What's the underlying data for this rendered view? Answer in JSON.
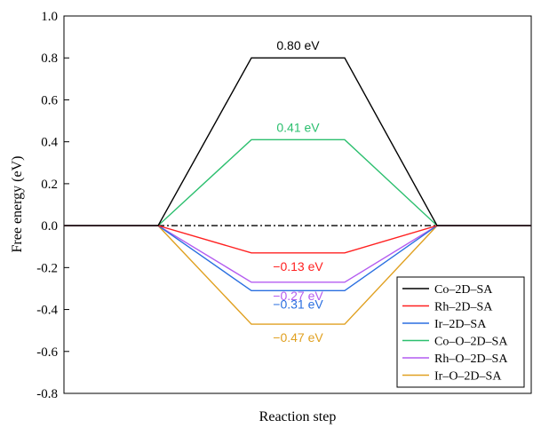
{
  "chart_data": {
    "type": "line",
    "title": "",
    "xlabel": "Reaction step",
    "ylabel": "Free energy (eV)",
    "ylim": [
      -0.8,
      1.0
    ],
    "yticks": [
      -0.8,
      -0.6,
      -0.4,
      -0.2,
      0.0,
      0.2,
      0.4,
      0.6,
      0.8,
      1.0
    ],
    "ytick_labels": [
      "-0.8",
      "-0.6",
      "-0.4",
      "-0.2",
      "0.0",
      "0.2",
      "0.4",
      "0.6",
      "0.8",
      "1.0"
    ],
    "grid": false,
    "legend_position": "bottom-right",
    "series": [
      {
        "name": "Co–2D–SA",
        "color": "#000000",
        "values": [
          0,
          0,
          0.8,
          0.8,
          0,
          0
        ],
        "annotation": "0.80 eV"
      },
      {
        "name": "Rh–2D–SA",
        "color": "#ff2020",
        "values": [
          0,
          0,
          -0.13,
          -0.13,
          0,
          0
        ],
        "annotation": "−0.13 eV"
      },
      {
        "name": "Ir–2D–SA",
        "color": "#2a6fe0",
        "values": [
          0,
          0,
          -0.31,
          -0.31,
          0,
          0
        ],
        "annotation": "−0.31 eV"
      },
      {
        "name": "Co–O–2D–SA",
        "color": "#2bbf6e",
        "values": [
          0,
          0,
          0.41,
          0.41,
          0,
          0
        ],
        "annotation": "0.41 eV"
      },
      {
        "name": "Rh–O–2D–SA",
        "color": "#b45cf0",
        "values": [
          0,
          0,
          -0.27,
          -0.27,
          0,
          0
        ],
        "annotation": "−0.27 eV"
      },
      {
        "name": "Ir–O–2D–SA",
        "color": "#e0a020",
        "values": [
          0,
          0,
          -0.47,
          -0.47,
          0,
          0
        ],
        "annotation": "−0.47 eV"
      }
    ],
    "reference_line": {
      "y": 0.0,
      "style": "dash-dot",
      "color": "#000000"
    }
  }
}
